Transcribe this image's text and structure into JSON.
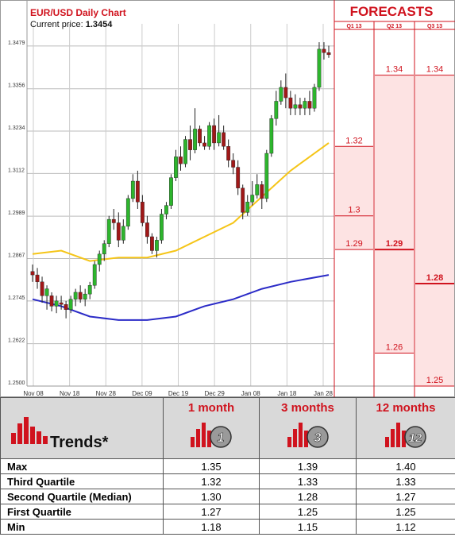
{
  "chart_data": {
    "type": "candlestick",
    "title": "EUR/USD Daily Chart",
    "current_price_label": "Current price:",
    "current_price": "1.3454",
    "y_ticks": [
      "1.3479",
      "1.3356",
      "1.3234",
      "1.3112",
      "1.2989",
      "1.2867",
      "1.2745",
      "1.2622",
      "1.2500"
    ],
    "x_ticks": [
      "Nov 08",
      "Nov 18",
      "Nov 28",
      "Dec 09",
      "Dec 19",
      "Dec 29",
      "Jan 08",
      "Jan 18",
      "Jan 28"
    ],
    "ylim": [
      1.25,
      1.352
    ],
    "candles": [
      [
        1.283,
        1.285,
        1.28,
        1.282
      ],
      [
        1.282,
        1.284,
        1.278,
        1.28
      ],
      [
        1.28,
        1.2815,
        1.274,
        1.276
      ],
      [
        1.276,
        1.279,
        1.272,
        1.278
      ],
      [
        1.276,
        1.277,
        1.2715,
        1.273
      ],
      [
        1.273,
        1.276,
        1.271,
        1.2745
      ],
      [
        1.274,
        1.276,
        1.272,
        1.2735
      ],
      [
        1.2735,
        1.2745,
        1.2695,
        1.272
      ],
      [
        1.272,
        1.276,
        1.271,
        1.275
      ],
      [
        1.275,
        1.278,
        1.273,
        1.277
      ],
      [
        1.277,
        1.279,
        1.274,
        1.275
      ],
      [
        1.275,
        1.278,
        1.273,
        1.2765
      ],
      [
        1.2765,
        1.28,
        1.275,
        1.279
      ],
      [
        1.279,
        1.286,
        1.278,
        1.285
      ],
      [
        1.285,
        1.289,
        1.283,
        1.288
      ],
      [
        1.288,
        1.292,
        1.286,
        1.291
      ],
      [
        1.291,
        1.299,
        1.29,
        1.298
      ],
      [
        1.298,
        1.301,
        1.295,
        1.297
      ],
      [
        1.297,
        1.3,
        1.29,
        1.292
      ],
      [
        1.292,
        1.298,
        1.291,
        1.296
      ],
      [
        1.296,
        1.305,
        1.295,
        1.304
      ],
      [
        1.304,
        1.311,
        1.303,
        1.309
      ],
      [
        1.309,
        1.312,
        1.301,
        1.303
      ],
      [
        1.303,
        1.305,
        1.296,
        1.297
      ],
      [
        1.297,
        1.299,
        1.291,
        1.293
      ],
      [
        1.293,
        1.294,
        1.288,
        1.289
      ],
      [
        1.289,
        1.293,
        1.287,
        1.292
      ],
      [
        1.292,
        1.301,
        1.291,
        1.2995
      ],
      [
        1.2995,
        1.303,
        1.298,
        1.302
      ],
      [
        1.302,
        1.311,
        1.301,
        1.31
      ],
      [
        1.31,
        1.318,
        1.309,
        1.316
      ],
      [
        1.316,
        1.319,
        1.312,
        1.314
      ],
      [
        1.314,
        1.322,
        1.313,
        1.321
      ],
      [
        1.321,
        1.325,
        1.315,
        1.318
      ],
      [
        1.318,
        1.33,
        1.317,
        1.324
      ],
      [
        1.324,
        1.325,
        1.319,
        1.32
      ],
      [
        1.32,
        1.322,
        1.318,
        1.319
      ],
      [
        1.319,
        1.326,
        1.318,
        1.325
      ],
      [
        1.325,
        1.327,
        1.318,
        1.32
      ],
      [
        1.32,
        1.328,
        1.319,
        1.323
      ],
      [
        1.323,
        1.325,
        1.318,
        1.319
      ],
      [
        1.319,
        1.321,
        1.313,
        1.315
      ],
      [
        1.315,
        1.317,
        1.311,
        1.313
      ],
      [
        1.313,
        1.315,
        1.305,
        1.307
      ],
      [
        1.307,
        1.308,
        1.298,
        1.3
      ],
      [
        1.3,
        1.305,
        1.299,
        1.303
      ],
      [
        1.303,
        1.309,
        1.302,
        1.305
      ],
      [
        1.305,
        1.311,
        1.304,
        1.308
      ],
      [
        1.308,
        1.309,
        1.301,
        1.304
      ],
      [
        1.304,
        1.318,
        1.303,
        1.317
      ],
      [
        1.317,
        1.328,
        1.316,
        1.327
      ],
      [
        1.327,
        1.335,
        1.325,
        1.332
      ],
      [
        1.332,
        1.338,
        1.331,
        1.336
      ],
      [
        1.336,
        1.34,
        1.33,
        1.333
      ],
      [
        1.333,
        1.335,
        1.328,
        1.33
      ],
      [
        1.33,
        1.334,
        1.328,
        1.331
      ],
      [
        1.331,
        1.333,
        1.328,
        1.33
      ],
      [
        1.33,
        1.333,
        1.328,
        1.332
      ],
      [
        1.332,
        1.335,
        1.328,
        1.33
      ],
      [
        1.33,
        1.337,
        1.329,
        1.336
      ],
      [
        1.336,
        1.349,
        1.335,
        1.347
      ],
      [
        1.347,
        1.349,
        1.344,
        1.346
      ],
      [
        1.346,
        1.348,
        1.3445,
        1.3454
      ]
    ],
    "ma_yellow": [
      [
        0,
        1.288
      ],
      [
        6,
        1.289
      ],
      [
        12,
        1.286
      ],
      [
        18,
        1.287
      ],
      [
        24,
        1.287
      ],
      [
        30,
        1.289
      ],
      [
        36,
        1.293
      ],
      [
        42,
        1.297
      ],
      [
        46,
        1.302
      ],
      [
        50,
        1.307
      ],
      [
        54,
        1.312
      ],
      [
        58,
        1.316
      ],
      [
        62,
        1.32
      ]
    ],
    "ma_blue": [
      [
        0,
        1.275
      ],
      [
        6,
        1.273
      ],
      [
        12,
        1.27
      ],
      [
        18,
        1.269
      ],
      [
        24,
        1.269
      ],
      [
        30,
        1.27
      ],
      [
        36,
        1.273
      ],
      [
        42,
        1.275
      ],
      [
        48,
        1.278
      ],
      [
        54,
        1.28
      ],
      [
        62,
        1.282
      ]
    ],
    "forecasts": {
      "title": "FORECASTS",
      "columns": [
        {
          "label": "Q1 13",
          "values": [
            {
              "label": "1.32",
              "value": 1.319,
              "emph": false
            },
            {
              "label": "1.3",
              "value": 1.299,
              "emph": false
            },
            {
              "label": "1.29",
              "value": 1.2893,
              "emph": false
            }
          ]
        },
        {
          "label": "Q2 13",
          "values": [
            {
              "label": "1.34",
              "value": 1.3395,
              "emph": false
            },
            {
              "label": "1.29",
              "value": 1.2893,
              "emph": true
            },
            {
              "label": "1.26",
              "value": 1.2595,
              "emph": false
            }
          ]
        },
        {
          "label": "Q3 13",
          "values": [
            {
              "label": "1.34",
              "value": 1.3395,
              "emph": false
            },
            {
              "label": "1.28",
              "value": 1.2795,
              "emph": true
            },
            {
              "label": "1.25",
              "value": 1.25,
              "emph": false
            }
          ]
        }
      ]
    }
  },
  "trends": {
    "title": "Trends*",
    "columns": [
      {
        "title": "1 month",
        "badge": "1"
      },
      {
        "title": "3 months",
        "badge": "3"
      },
      {
        "title": "12 months",
        "badge": "12"
      }
    ],
    "rows": [
      {
        "label": "Max",
        "values": [
          "1.35",
          "1.39",
          "1.40"
        ]
      },
      {
        "label": "Third Quartile",
        "values": [
          "1.32",
          "1.33",
          "1.33"
        ]
      },
      {
        "label": "Second Quartile (Median)",
        "values": [
          "1.30",
          "1.28",
          "1.27"
        ]
      },
      {
        "label": "First Quartile",
        "values": [
          "1.27",
          "1.25",
          "1.25"
        ]
      },
      {
        "label": "Min",
        "values": [
          "1.18",
          "1.15",
          "1.12"
        ]
      }
    ]
  },
  "colors": {
    "up": "#2db52d",
    "down": "#a01818",
    "ma_yellow": "#f5c518",
    "ma_blue": "#2b2bc7",
    "accent": "#d0131e",
    "forecast_fill": "#fde3e3"
  }
}
